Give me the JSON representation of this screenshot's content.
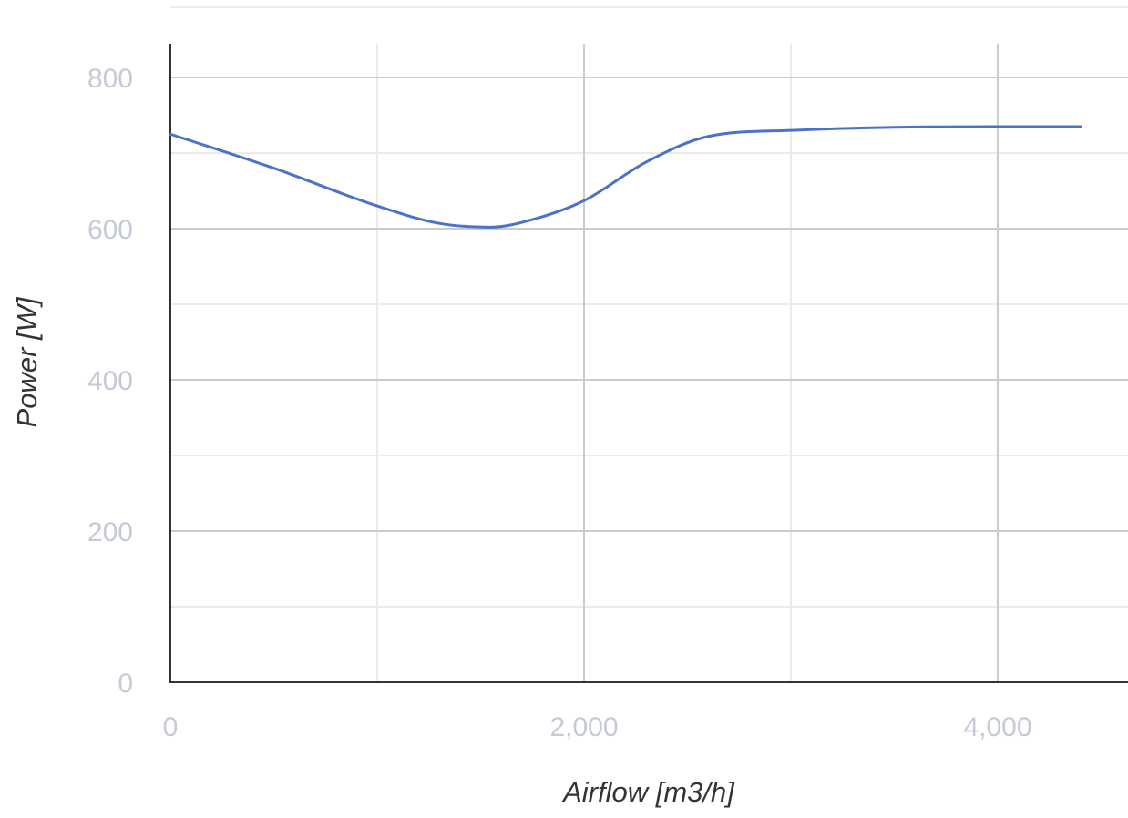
{
  "chart_data": {
    "type": "line",
    "title": "",
    "xlabel": "Airflow [m3/h]",
    "ylabel": "Power [W]",
    "xlim": [
      0,
      4700
    ],
    "ylim": [
      0,
      800
    ],
    "x_ticks": [
      0,
      2000,
      4000
    ],
    "x_tick_labels": [
      "0",
      "2,000",
      "4,000"
    ],
    "x_minor_gridlines": [
      1000,
      3000
    ],
    "y_ticks": [
      0,
      200,
      400,
      600,
      800
    ],
    "y_tick_labels": [
      "0",
      "200",
      "400",
      "600",
      "800"
    ],
    "y_minor_gridlines": [
      100,
      300,
      500,
      700
    ],
    "grid": true,
    "legend": "none",
    "line_color": "#4a72c9",
    "series": [
      {
        "x": [
          0,
          500,
          1000,
          1300,
          1550,
          1750,
          2000,
          2300,
          2600,
          3000,
          3500,
          4000,
          4400
        ],
        "values": [
          725,
          680,
          630,
          607,
          602,
          612,
          637,
          688,
          722,
          730,
          734,
          735,
          735
        ]
      }
    ]
  }
}
